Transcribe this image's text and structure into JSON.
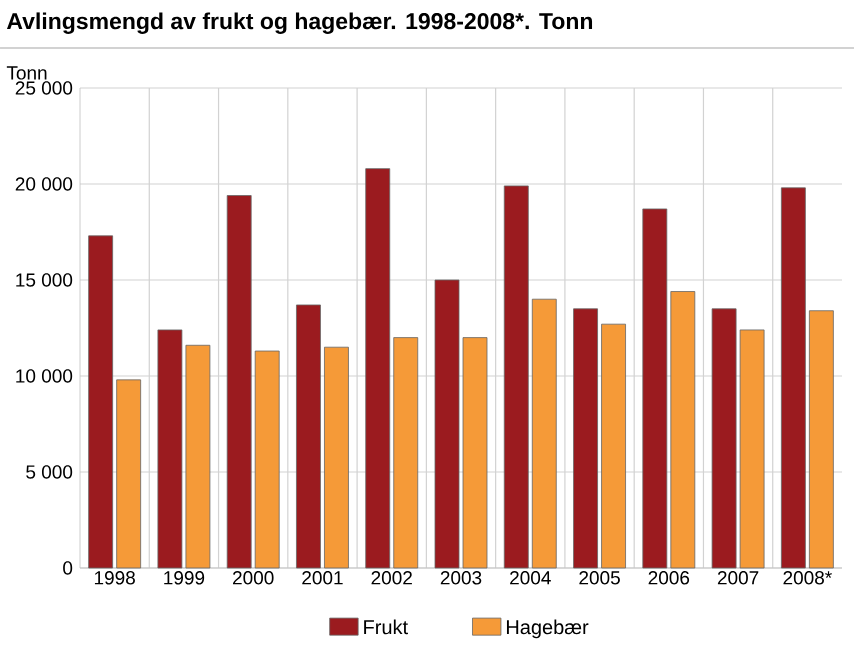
{
  "chart_data": {
    "type": "bar",
    "title": "Avlingsmengd av frukt og hagebær. 1998-2008*. Tonn",
    "ylabel": "Tonn",
    "categories": [
      "1998",
      "1999",
      "2000",
      "2001",
      "2002",
      "2003",
      "2004",
      "2005",
      "2006",
      "2007",
      "2008*"
    ],
    "series": [
      {
        "name": "Frukt",
        "color": "#9b1b1f",
        "values": [
          17300,
          12400,
          19400,
          13700,
          20800,
          15000,
          19900,
          13500,
          18700,
          13500,
          19800
        ]
      },
      {
        "name": "Hagebær",
        "color": "#f59a38",
        "values": [
          9800,
          11600,
          11300,
          11500,
          12000,
          12000,
          14000,
          12700,
          14400,
          12400,
          13400
        ]
      }
    ],
    "ylim": [
      0,
      25000
    ],
    "yticks": [
      0,
      {
        "value": 5000,
        "label": "5 000"
      },
      {
        "value": 10000,
        "label": "10 000"
      },
      {
        "value": 15000,
        "label": "15 000"
      },
      {
        "value": 20000,
        "label": "20 000"
      },
      {
        "value": 25000,
        "label": "25 000"
      }
    ],
    "grid": true,
    "legend": "bottom"
  }
}
